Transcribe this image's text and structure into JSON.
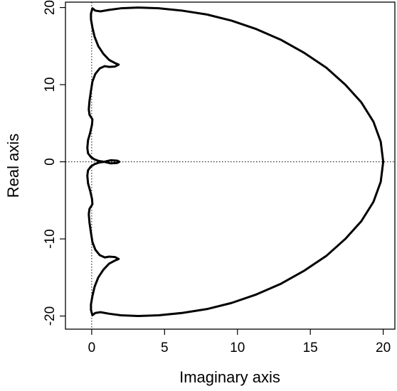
{
  "chart_data": {
    "type": "line",
    "title": "",
    "xlabel": "Imaginary axis",
    "ylabel": "Real axis",
    "xlim": [
      -1.8,
      20.8
    ],
    "ylim": [
      -21.7,
      20.7
    ],
    "xticks": [
      0,
      5,
      10,
      15,
      20
    ],
    "yticks": [
      -20,
      -10,
      0,
      10,
      20
    ],
    "xtick_labels": [
      "0",
      "5",
      "10",
      "15",
      "20"
    ],
    "ytick_labels": [
      "-20",
      "-10",
      "0",
      "10",
      "20"
    ],
    "reference_lines": {
      "vertical_x": 0,
      "horizontal_y": 0,
      "style": "dotted"
    },
    "grid": false,
    "legend": "none",
    "line_color": "#000000",
    "series": [
      {
        "x": [
          20.0,
          19.83,
          19.33,
          18.5,
          17.4,
          16.1,
          14.6,
          13.0,
          11.3,
          9.6,
          7.9,
          6.2,
          4.6,
          3.2,
          2.0,
          1.2,
          0.6,
          0.25,
          0.05,
          -0.05,
          -0.05,
          0.05,
          0.2,
          0.45,
          0.8,
          1.2,
          1.6,
          1.85,
          1.6,
          1.2,
          0.9,
          0.55,
          0.25,
          0.05,
          -0.05,
          -0.15,
          -0.2,
          -0.15,
          -0.05,
          0.05,
          0.02,
          -0.1,
          -0.25,
          -0.3,
          -0.25,
          -0.05,
          0.2,
          0.5,
          0.85,
          1.3,
          1.75,
          1.9,
          1.75,
          1.3,
          0.85,
          0.5,
          0.2,
          -0.05,
          -0.25,
          -0.3,
          -0.25,
          -0.1,
          0.02,
          0.05,
          -0.05,
          -0.15,
          -0.2,
          -0.15,
          -0.05,
          0.05,
          0.25,
          0.55,
          0.9,
          1.2,
          1.6,
          1.85,
          1.6,
          1.2,
          0.8,
          0.45,
          0.2,
          0.05,
          -0.05,
          -0.05,
          0.05,
          0.25,
          0.6,
          1.2,
          2.0,
          3.2,
          4.6,
          6.2,
          7.9,
          9.6,
          11.3,
          13.0,
          14.6,
          16.1,
          17.4,
          18.5,
          19.33,
          19.83,
          20.0
        ],
        "y": [
          0.0,
          2.6,
          5.2,
          7.7,
          10.0,
          12.2,
          14.1,
          15.8,
          17.2,
          18.3,
          19.1,
          19.6,
          19.9,
          20.0,
          19.9,
          19.7,
          19.5,
          19.6,
          19.9,
          19.2,
          18.5,
          17.4,
          16.2,
          15.0,
          14.0,
          13.2,
          12.8,
          12.6,
          12.35,
          12.3,
          12.4,
          12.1,
          11.4,
          10.4,
          9.2,
          7.9,
          6.8,
          6.1,
          5.8,
          5.5,
          4.8,
          3.8,
          2.8,
          1.8,
          1.1,
          0.6,
          0.3,
          0.1,
          0.0,
          0.2,
          0.15,
          0.0,
          -0.15,
          -0.2,
          0.0,
          -0.1,
          -0.3,
          -0.6,
          -1.1,
          -1.8,
          -2.8,
          -3.8,
          -4.8,
          -5.5,
          -5.8,
          -6.1,
          -6.8,
          -7.9,
          -9.2,
          -10.4,
          -11.4,
          -12.1,
          -12.4,
          -12.3,
          -12.35,
          -12.6,
          -12.8,
          -13.2,
          -14.0,
          -15.0,
          -16.2,
          -17.4,
          -18.5,
          -19.2,
          -19.9,
          -19.6,
          -19.5,
          -19.7,
          -19.9,
          -20.0,
          -19.9,
          -19.6,
          -19.1,
          -18.3,
          -17.2,
          -15.8,
          -14.1,
          -12.2,
          -10.0,
          -7.7,
          -5.2,
          -2.6,
          0.0
        ]
      }
    ]
  }
}
